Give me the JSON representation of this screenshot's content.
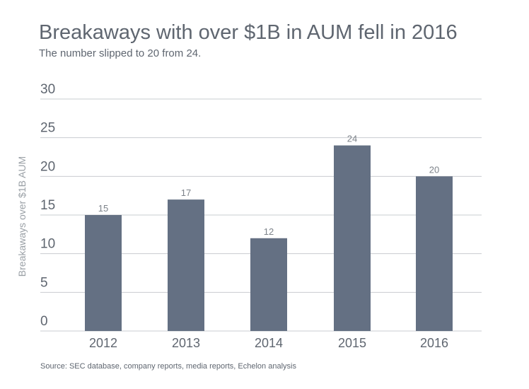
{
  "title": "Breakaways with over $1B in AUM fell in 2016",
  "subtitle": "The number slipped to 20 from 24.",
  "source": "Source: SEC database, company reports, media reports, Echelon analysis",
  "colors": {
    "bar": "#647083",
    "text": "#5f6670",
    "grid": "#c9ccd0"
  },
  "chart_data": {
    "type": "bar",
    "title": "Breakaways with over $1B in AUM fell in 2016",
    "subtitle": "The number slipped to 20 from 24.",
    "xlabel": "",
    "ylabel": "Breakaways over $1B AUM",
    "categories": [
      "2012",
      "2013",
      "2014",
      "2015",
      "2016"
    ],
    "values": [
      15,
      17,
      12,
      24,
      20
    ],
    "data_labels": [
      "15",
      "17",
      "12",
      "24",
      "20"
    ],
    "ylim": [
      0,
      30
    ],
    "yticks": [
      "0",
      "5",
      "10",
      "15",
      "20",
      "25",
      "30"
    ],
    "grid": true,
    "legend": "none"
  }
}
